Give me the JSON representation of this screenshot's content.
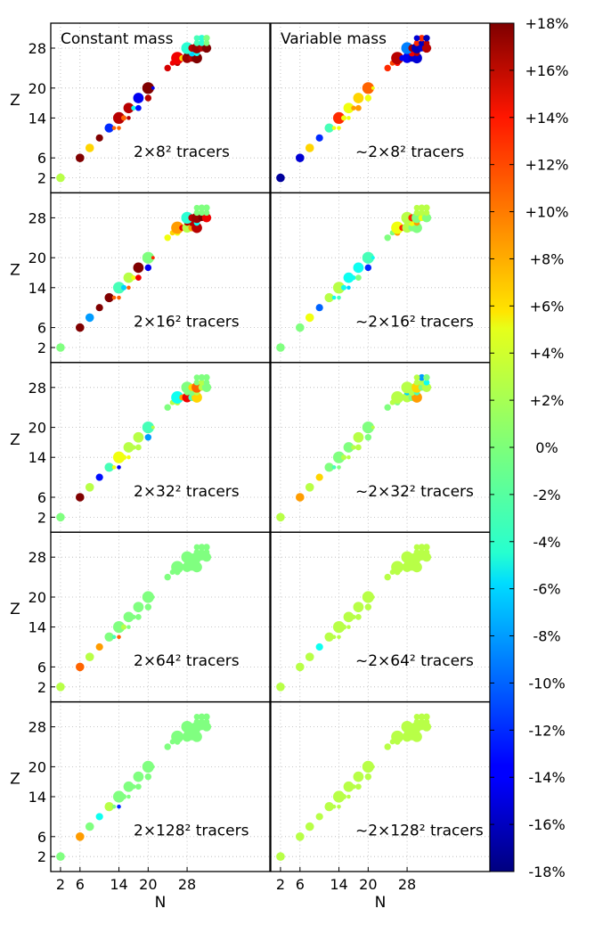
{
  "chart_data": {
    "type": "scatter",
    "xlabel": "N",
    "ylabel": "Z",
    "xticks": [
      "2",
      "6",
      "14",
      "20",
      "28"
    ],
    "yticks": [
      "2",
      "6",
      "14",
      "20",
      "28"
    ],
    "xlim": [
      0,
      45
    ],
    "ylim": [
      -1,
      33
    ],
    "grid": true,
    "columns": [
      "Constant mass",
      "Variable mass"
    ],
    "row_labels": {
      "constant": [
        "2×8²  tracers",
        "2×16²  tracers",
        "2×32²  tracers",
        "2×64²  tracers",
        "2×128²  tracers"
      ],
      "variable": [
        "~2×8²  tracers",
        "~2×16²  tracers",
        "~2×32²  tracers",
        "~2×64²  tracers",
        "~2×128²  tracers"
      ]
    },
    "colorbar": {
      "ticks": [
        "+18%",
        "+16%",
        "+14%",
        "+12%",
        "+10%",
        "+8%",
        "+6%",
        "+4%",
        "+2%",
        "0%",
        "-2%",
        "-4%",
        "-6%",
        "-8%",
        "-10%",
        "-12%",
        "-14%",
        "-16%",
        "-18%"
      ],
      "range": [
        -18,
        18
      ],
      "colormap": "jet"
    },
    "isotopes": [
      {
        "n": 2,
        "z": 2,
        "mass": 1.0
      },
      {
        "n": 6,
        "z": 6,
        "mass": 1.0
      },
      {
        "n": 8,
        "z": 8,
        "mass": 1.0
      },
      {
        "n": 10,
        "z": 10,
        "mass": 0.8
      },
      {
        "n": 12,
        "z": 12,
        "mass": 1.1
      },
      {
        "n": 13,
        "z": 12,
        "mass": 0.3
      },
      {
        "n": 14,
        "z": 12,
        "mass": 0.3
      },
      {
        "n": 14,
        "z": 14,
        "mass": 1.5
      },
      {
        "n": 15,
        "z": 14,
        "mass": 0.5
      },
      {
        "n": 16,
        "z": 14,
        "mass": 0.3
      },
      {
        "n": 16,
        "z": 16,
        "mass": 1.3
      },
      {
        "n": 17,
        "z": 16,
        "mass": 0.4
      },
      {
        "n": 18,
        "z": 16,
        "mass": 0.6
      },
      {
        "n": 18,
        "z": 18,
        "mass": 1.3
      },
      {
        "n": 20,
        "z": 18,
        "mass": 0.7
      },
      {
        "n": 20,
        "z": 20,
        "mass": 1.5
      },
      {
        "n": 21,
        "z": 20,
        "mass": 0.2
      },
      {
        "n": 24,
        "z": 24,
        "mass": 0.7
      },
      {
        "n": 25,
        "z": 25,
        "mass": 0.5
      },
      {
        "n": 26,
        "z": 25,
        "mass": 0.6
      },
      {
        "n": 26,
        "z": 26,
        "mass": 1.6
      },
      {
        "n": 27,
        "z": 26,
        "mass": 0.6
      },
      {
        "n": 28,
        "z": 26,
        "mass": 1.2
      },
      {
        "n": 29,
        "z": 26,
        "mass": 0.8
      },
      {
        "n": 30,
        "z": 26,
        "mass": 1.3
      },
      {
        "n": 28,
        "z": 27,
        "mass": 0.6
      },
      {
        "n": 29,
        "z": 27,
        "mass": 0.7
      },
      {
        "n": 30,
        "z": 27,
        "mass": 0.6
      },
      {
        "n": 28,
        "z": 28,
        "mass": 1.5
      },
      {
        "n": 29,
        "z": 28,
        "mass": 0.8
      },
      {
        "n": 30,
        "z": 28,
        "mass": 1.3
      },
      {
        "n": 31,
        "z": 28,
        "mass": 0.7
      },
      {
        "n": 32,
        "z": 28,
        "mass": 1.1
      },
      {
        "n": 30,
        "z": 29,
        "mass": 0.6
      },
      {
        "n": 31,
        "z": 29,
        "mass": 0.6
      },
      {
        "n": 32,
        "z": 29,
        "mass": 0.6
      },
      {
        "n": 31,
        "z": 30,
        "mass": 0.7
      },
      {
        "n": 32,
        "z": 30,
        "mass": 0.7
      },
      {
        "n": 30,
        "z": 30,
        "mass": 0.6
      }
    ],
    "deviation": {
      "constant": [
        [
          2,
          18,
          6,
          18,
          -12,
          10,
          10,
          16,
          10,
          16,
          16,
          -4,
          -13,
          -14,
          16,
          18,
          -14,
          15,
          14,
          16,
          14,
          6,
          17,
          16,
          18,
          18,
          -6,
          -4,
          -3,
          16,
          17,
          16,
          18,
          -2,
          -3,
          0,
          -3,
          0,
          -2
        ],
        [
          0,
          18,
          -8,
          18,
          18,
          10,
          10,
          -2,
          -6,
          10,
          2,
          4,
          14,
          18,
          -14,
          0,
          12,
          4,
          6,
          4,
          8,
          14,
          2,
          8,
          16,
          16,
          16,
          -4,
          -3,
          16,
          17,
          18,
          14,
          0,
          0,
          0,
          0,
          0,
          0
        ],
        [
          0,
          18,
          2,
          -13,
          -2,
          4,
          -14,
          4,
          4,
          4,
          2,
          2,
          2,
          2,
          -8,
          -2,
          2,
          0,
          2,
          2,
          -4,
          8,
          14,
          -2,
          6,
          0,
          0,
          2,
          0,
          6,
          10,
          2,
          0,
          0,
          2,
          0,
          0,
          0,
          0
        ],
        [
          2,
          10,
          2,
          8,
          0,
          -2,
          10,
          0,
          2,
          0,
          0,
          0,
          0,
          0,
          0,
          0,
          0,
          0,
          0,
          0,
          0,
          0,
          0,
          0,
          0,
          0,
          0,
          0,
          0,
          0,
          0,
          0,
          0,
          0,
          0,
          0,
          0,
          0,
          0
        ],
        [
          0,
          8,
          0,
          -4,
          2,
          0,
          -12,
          0,
          0,
          0,
          0,
          0,
          0,
          0,
          0,
          0,
          0,
          0,
          0,
          0,
          0,
          0,
          0,
          0,
          0,
          0,
          0,
          0,
          0,
          0,
          0,
          0,
          0,
          0,
          0,
          0,
          0,
          0,
          0
        ]
      ],
      "variable": [
        [
          -17,
          -15,
          6,
          -12,
          -2,
          4,
          4,
          12,
          4,
          4,
          4,
          8,
          8,
          6,
          4,
          10,
          4,
          12,
          11,
          13,
          16,
          -14,
          -14,
          -15,
          -15,
          -14,
          14,
          16,
          -9,
          17,
          -16,
          -15,
          16,
          12,
          -16,
          16,
          12,
          -16,
          -15
        ],
        [
          0,
          0,
          4,
          -10,
          2,
          -4,
          -2,
          2,
          -4,
          -6,
          -4,
          -4,
          0,
          -4,
          -12,
          -2,
          -4,
          0,
          0,
          8,
          4,
          12,
          2,
          0,
          0,
          2,
          4,
          8,
          2,
          12,
          0,
          4,
          0,
          2,
          2,
          2,
          2,
          2,
          2
        ],
        [
          2,
          8,
          2,
          6,
          0,
          -2,
          0,
          0,
          2,
          2,
          0,
          2,
          2,
          2,
          0,
          0,
          2,
          0,
          2,
          0,
          2,
          2,
          2,
          0,
          8,
          -6,
          2,
          -2,
          2,
          2,
          6,
          0,
          2,
          2,
          2,
          -4,
          -8,
          0,
          2
        ],
        [
          2,
          2,
          2,
          -4,
          2,
          2,
          2,
          2,
          2,
          2,
          2,
          2,
          2,
          2,
          2,
          2,
          2,
          2,
          2,
          2,
          2,
          2,
          2,
          2,
          2,
          2,
          2,
          2,
          2,
          2,
          2,
          2,
          2,
          2,
          2,
          2,
          2,
          2,
          2
        ],
        [
          2,
          2,
          2,
          2,
          2,
          2,
          2,
          2,
          2,
          2,
          2,
          2,
          2,
          2,
          2,
          2,
          2,
          2,
          2,
          2,
          2,
          2,
          2,
          2,
          2,
          2,
          2,
          2,
          2,
          2,
          2,
          2,
          2,
          2,
          2,
          2,
          2,
          2,
          2
        ]
      ]
    }
  }
}
